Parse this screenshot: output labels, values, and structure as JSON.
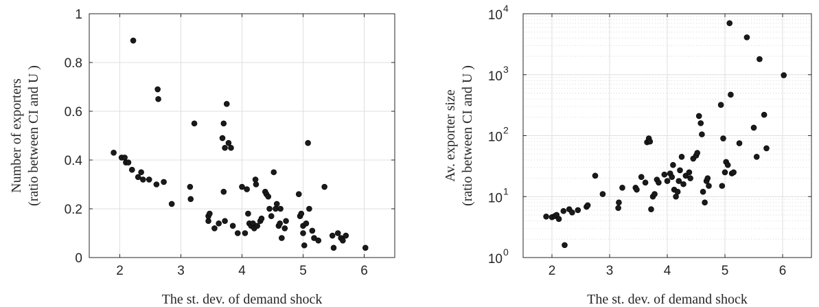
{
  "chart_data": [
    {
      "type": "scatter",
      "xlabel": "The st. dev. of demand shock",
      "ylabel_line1": "Number of exporters",
      "ylabel_line2": "(ratio between CI and U )",
      "xlim": [
        1.5,
        6.5
      ],
      "ylim": [
        0,
        1
      ],
      "yscale": "linear",
      "grid": true,
      "xticks": [
        2,
        3,
        4,
        5,
        6
      ],
      "yticks": [
        0,
        0.2,
        0.4,
        0.6,
        0.8,
        1
      ],
      "ytick_labels": [
        "0",
        "0.2",
        "0.4",
        "0.6",
        "0.8",
        "1"
      ],
      "marker_color": "#1a1a1a",
      "points": [
        [
          1.9,
          0.43
        ],
        [
          2.03,
          0.41
        ],
        [
          2.08,
          0.41
        ],
        [
          2.1,
          0.39
        ],
        [
          2.14,
          0.39
        ],
        [
          2.2,
          0.36
        ],
        [
          2.22,
          0.89
        ],
        [
          2.3,
          0.33
        ],
        [
          2.35,
          0.35
        ],
        [
          2.38,
          0.32
        ],
        [
          2.48,
          0.32
        ],
        [
          2.6,
          0.3
        ],
        [
          2.62,
          0.69
        ],
        [
          2.63,
          0.65
        ],
        [
          2.72,
          0.31
        ],
        [
          2.85,
          0.22
        ],
        [
          3.15,
          0.29
        ],
        [
          3.16,
          0.24
        ],
        [
          3.22,
          0.55
        ],
        [
          3.45,
          0.15
        ],
        [
          3.45,
          0.17
        ],
        [
          3.47,
          0.18
        ],
        [
          3.55,
          0.12
        ],
        [
          3.62,
          0.14
        ],
        [
          3.68,
          0.49
        ],
        [
          3.7,
          0.55
        ],
        [
          3.7,
          0.27
        ],
        [
          3.72,
          0.45
        ],
        [
          3.75,
          0.63
        ],
        [
          3.72,
          0.15
        ],
        [
          3.78,
          0.47
        ],
        [
          3.82,
          0.45
        ],
        [
          3.85,
          0.13
        ],
        [
          3.93,
          0.1
        ],
        [
          4.0,
          0.29
        ],
        [
          4.05,
          0.1
        ],
        [
          4.08,
          0.28
        ],
        [
          4.1,
          0.18
        ],
        [
          4.12,
          0.14
        ],
        [
          4.15,
          0.13
        ],
        [
          4.18,
          0.14
        ],
        [
          4.2,
          0.12
        ],
        [
          4.22,
          0.32
        ],
        [
          4.23,
          0.3
        ],
        [
          4.25,
          0.13
        ],
        [
          4.3,
          0.15
        ],
        [
          4.32,
          0.16
        ],
        [
          4.38,
          0.27
        ],
        [
          4.4,
          0.26
        ],
        [
          4.43,
          0.25
        ],
        [
          4.45,
          0.2
        ],
        [
          4.48,
          0.17
        ],
        [
          4.52,
          0.35
        ],
        [
          4.55,
          0.2
        ],
        [
          4.57,
          0.22
        ],
        [
          4.6,
          0.13
        ],
        [
          4.62,
          0.14
        ],
        [
          4.63,
          0.2
        ],
        [
          4.65,
          0.08
        ],
        [
          4.7,
          0.12
        ],
        [
          4.72,
          0.15
        ],
        [
          4.93,
          0.26
        ],
        [
          4.95,
          0.17
        ],
        [
          4.97,
          0.18
        ],
        [
          5.0,
          0.13
        ],
        [
          5.0,
          0.1
        ],
        [
          5.02,
          0.05
        ],
        [
          5.05,
          0.14
        ],
        [
          5.08,
          0.47
        ],
        [
          5.1,
          0.2
        ],
        [
          5.15,
          0.11
        ],
        [
          5.18,
          0.08
        ],
        [
          5.25,
          0.07
        ],
        [
          5.35,
          0.29
        ],
        [
          5.48,
          0.09
        ],
        [
          5.5,
          0.04
        ],
        [
          5.57,
          0.1
        ],
        [
          5.62,
          0.08
        ],
        [
          5.65,
          0.07
        ],
        [
          5.7,
          0.09
        ],
        [
          6.02,
          0.04
        ]
      ]
    },
    {
      "type": "scatter",
      "xlabel": "The st. dev. of demand shock",
      "ylabel_line1": "Av. exporter size",
      "ylabel_line2": "(ratio between CI and U )",
      "xlim": [
        1.5,
        6.5
      ],
      "ylim": [
        1,
        10000
      ],
      "yscale": "log",
      "grid": true,
      "xticks": [
        2,
        3,
        4,
        5,
        6
      ],
      "yticks": [
        1,
        10,
        100,
        1000,
        10000
      ],
      "ytick_labels": [
        {
          "b": "10",
          "e": "0"
        },
        {
          "b": "10",
          "e": "1"
        },
        {
          "b": "10",
          "e": "2"
        },
        {
          "b": "10",
          "e": "3"
        },
        {
          "b": "10",
          "e": "4"
        }
      ],
      "marker_color": "#1a1a1a",
      "points": [
        [
          1.9,
          4.7
        ],
        [
          2.0,
          4.6
        ],
        [
          2.05,
          4.8
        ],
        [
          2.08,
          5.0
        ],
        [
          2.12,
          4.3
        ],
        [
          2.2,
          5.8
        ],
        [
          2.22,
          1.6
        ],
        [
          2.3,
          6.2
        ],
        [
          2.35,
          5.5
        ],
        [
          2.45,
          6.0
        ],
        [
          2.6,
          6.8
        ],
        [
          2.62,
          7.2
        ],
        [
          2.75,
          22
        ],
        [
          2.88,
          11
        ],
        [
          3.15,
          6.5
        ],
        [
          3.16,
          8
        ],
        [
          3.22,
          14
        ],
        [
          3.45,
          14
        ],
        [
          3.47,
          13
        ],
        [
          3.55,
          21
        ],
        [
          3.62,
          17
        ],
        [
          3.65,
          78
        ],
        [
          3.68,
          90
        ],
        [
          3.7,
          80
        ],
        [
          3.72,
          6.2
        ],
        [
          3.75,
          10
        ],
        [
          3.78,
          11
        ],
        [
          3.82,
          19
        ],
        [
          3.85,
          17
        ],
        [
          3.95,
          23
        ],
        [
          4.0,
          18
        ],
        [
          4.05,
          24
        ],
        [
          4.08,
          21
        ],
        [
          4.1,
          33
        ],
        [
          4.12,
          13
        ],
        [
          4.15,
          10
        ],
        [
          4.18,
          12
        ],
        [
          4.2,
          18
        ],
        [
          4.22,
          27
        ],
        [
          4.25,
          45
        ],
        [
          4.28,
          16
        ],
        [
          4.32,
          22
        ],
        [
          4.38,
          25
        ],
        [
          4.4,
          20
        ],
        [
          4.45,
          42
        ],
        [
          4.5,
          47
        ],
        [
          4.52,
          52
        ],
        [
          4.55,
          210
        ],
        [
          4.58,
          160
        ],
        [
          4.6,
          105
        ],
        [
          4.62,
          12
        ],
        [
          4.65,
          8
        ],
        [
          4.68,
          18
        ],
        [
          4.7,
          20
        ],
        [
          4.72,
          15
        ],
        [
          4.93,
          320
        ],
        [
          4.95,
          15
        ],
        [
          4.97,
          90
        ],
        [
          5.0,
          25
        ],
        [
          5.02,
          37
        ],
        [
          5.05,
          33
        ],
        [
          5.08,
          7000
        ],
        [
          5.1,
          470
        ],
        [
          5.12,
          24
        ],
        [
          5.15,
          25
        ],
        [
          5.25,
          75
        ],
        [
          5.38,
          4100
        ],
        [
          5.5,
          135
        ],
        [
          5.55,
          45
        ],
        [
          5.6,
          1800
        ],
        [
          5.68,
          220
        ],
        [
          5.72,
          62
        ],
        [
          6.02,
          980
        ]
      ]
    }
  ]
}
